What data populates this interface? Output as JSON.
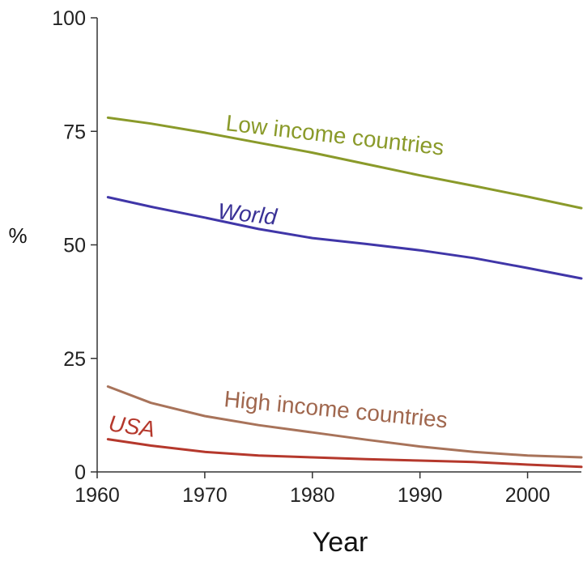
{
  "chart_data": {
    "type": "line",
    "title": "",
    "xlabel": "Year",
    "ylabel": "%",
    "xlim": [
      1960,
      2005
    ],
    "ylim": [
      0,
      100
    ],
    "x_ticks": [
      1960,
      1970,
      1980,
      1990,
      2000
    ],
    "y_ticks": [
      0,
      25,
      50,
      75,
      100
    ],
    "grid": false,
    "legend": "none (series labeled inline)",
    "series": [
      {
        "name": "Low income countries",
        "color": "#8a9a2a",
        "x": [
          1961,
          1965,
          1970,
          1975,
          1980,
          1985,
          1990,
          1995,
          2000,
          2005
        ],
        "values": [
          78,
          76.7,
          74.7,
          72.5,
          70.3,
          67.8,
          65.3,
          63,
          60.6,
          58.1
        ]
      },
      {
        "name": "World",
        "color": "#4036a8",
        "x": [
          1961,
          1965,
          1970,
          1975,
          1980,
          1985,
          1990,
          1995,
          2000,
          2005
        ],
        "values": [
          60.5,
          58.4,
          56,
          53.5,
          51.5,
          50.2,
          48.8,
          47.1,
          44.9,
          42.6
        ]
      },
      {
        "name": "High income countries",
        "color": "#a8735a",
        "x": [
          1961,
          1965,
          1970,
          1975,
          1980,
          1985,
          1990,
          1995,
          2000,
          2005
        ],
        "values": [
          18.8,
          15.2,
          12.3,
          10.3,
          8.7,
          7.1,
          5.6,
          4.4,
          3.6,
          3.2
        ]
      },
      {
        "name": "USA",
        "color": "#b5382c",
        "x": [
          1961,
          1965,
          1970,
          1975,
          1980,
          1985,
          1990,
          1995,
          2000,
          2005
        ],
        "values": [
          7.2,
          5.8,
          4.4,
          3.6,
          3.2,
          2.8,
          2.5,
          2.2,
          1.6,
          1.1
        ]
      }
    ]
  },
  "labels": {
    "low": "Low income countries",
    "world": "World",
    "high": "High income countries",
    "usa": "USA"
  }
}
